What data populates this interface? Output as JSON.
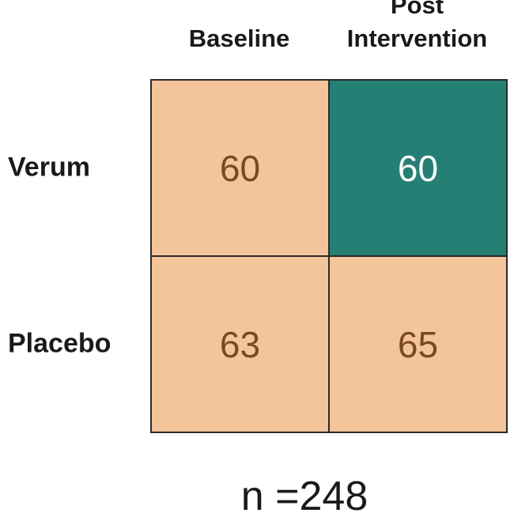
{
  "table": {
    "columns": [
      "Baseline",
      "Post Intervention"
    ],
    "rows": [
      {
        "label": "Verum",
        "cells": [
          {
            "value": "60",
            "color": "#f4c49a",
            "text_color": "#7b4a1c"
          },
          {
            "value": "60",
            "color": "#267f74",
            "text_color": "#ffffff"
          }
        ]
      },
      {
        "label": "Placebo",
        "cells": [
          {
            "value": "63",
            "color": "#f4c49a",
            "text_color": "#7b4a1c"
          },
          {
            "value": "65",
            "color": "#f4c49a",
            "text_color": "#7b4a1c"
          }
        ]
      }
    ],
    "border_color": "#2a2a2a"
  },
  "note": "n =248"
}
